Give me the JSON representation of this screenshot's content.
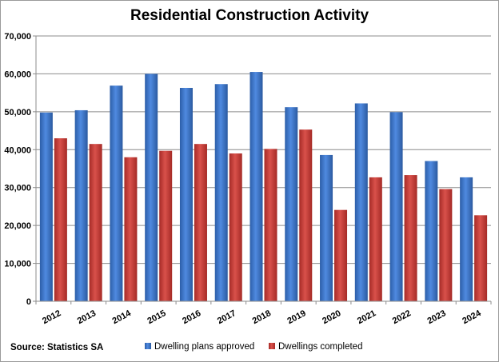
{
  "chart_data": {
    "type": "bar",
    "title": "Residential Construction Activity",
    "categories": [
      "2012",
      "2013",
      "2014",
      "2015",
      "2016",
      "2017",
      "2018",
      "2019",
      "2020",
      "2021",
      "2022",
      "2023",
      "2024"
    ],
    "series": [
      {
        "name": "Dwelling plans approved",
        "color": "#3d74c9",
        "values": [
          49800,
          50400,
          56900,
          60000,
          56300,
          57300,
          60500,
          51200,
          38600,
          52200,
          49900,
          37000,
          32700
        ]
      },
      {
        "name": "Dwellings completed",
        "color": "#c43a35",
        "values": [
          43000,
          41500,
          38000,
          39700,
          41500,
          39000,
          40200,
          45300,
          24100,
          32700,
          33300,
          29600,
          22700
        ]
      }
    ],
    "ylim": [
      0,
      70000
    ],
    "yticks": [
      0,
      10000,
      20000,
      30000,
      40000,
      50000,
      60000,
      70000
    ],
    "ytick_labels": [
      "0",
      "10,000",
      "20,000",
      "30,000",
      "40,000",
      "50,000",
      "60,000",
      "70,000"
    ],
    "xlabel": "",
    "ylabel": "",
    "grid": true,
    "legend_position": "bottom",
    "source": "Source: Statistics SA"
  }
}
